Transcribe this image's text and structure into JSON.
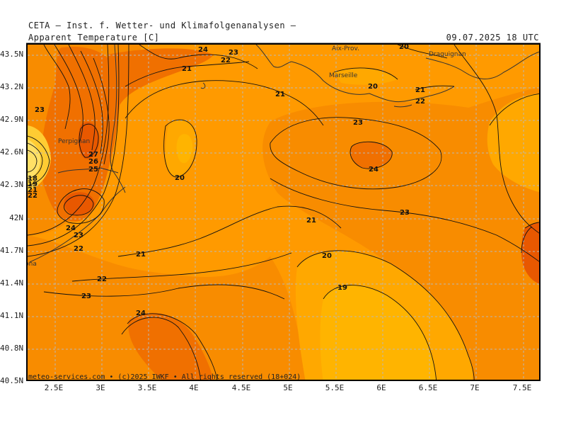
{
  "header": {
    "institute": "CETA — Inst. f. Wetter- und Klimafolgenanalysen —",
    "parameter": "Apparent Temperature [C]",
    "valid_time": "09.07.2025 18 UTC"
  },
  "axes": {
    "y_ticks": [
      "43.5N",
      "43.2N",
      "42.9N",
      "42.6N",
      "42.3N",
      "42N",
      "41.7N",
      "41.4N",
      "41.1N",
      "40.8N",
      "40.5N"
    ],
    "x_ticks": [
      "2.5E",
      "3E",
      "3.5E",
      "4E",
      "4.5E",
      "5E",
      "5.5E",
      "6E",
      "6.5E",
      "7E",
      "7.5E"
    ]
  },
  "places": [
    "Aix-Prov.",
    "Draguignan",
    "Marseille",
    "Perpignan",
    "Barcelona"
  ],
  "contour_labels": [
    "24",
    "23",
    "22",
    "21",
    "20",
    "20",
    "21",
    "22",
    "23",
    "27",
    "26",
    "25",
    "18",
    "19",
    "21",
    "22",
    "20",
    "23",
    "24",
    "23",
    "21",
    "24",
    "23",
    "22",
    "21",
    "22",
    "23",
    "24",
    "20",
    "19",
    "21"
  ],
  "copyright": "meteo-services.com • (c)2025 IWKF • All rights reserved (18+024)",
  "colors": {
    "band_19": "#FFB400",
    "band_20": "#FFA800",
    "band_21": "#FF9A00",
    "band_22": "#F88C00",
    "band_24": "#F07000",
    "band_27": "#E85800",
    "land_warm": "#FFCC33"
  }
}
